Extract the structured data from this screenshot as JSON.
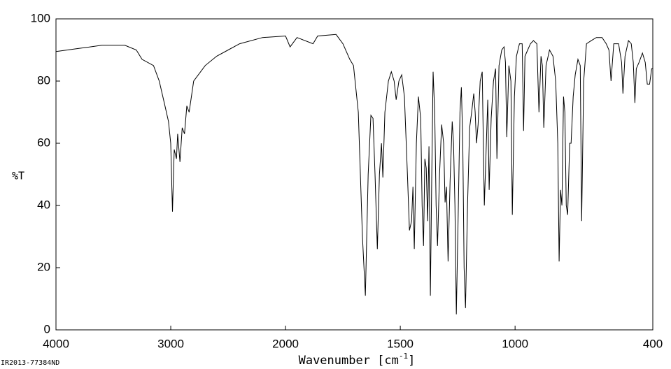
{
  "chart_data": {
    "type": "line",
    "ylabel": "%T",
    "xlabel": [
      "Wavenumber [cm",
      "-1",
      "]"
    ],
    "footer": "IR2013-77384ND",
    "xlim": [
      4000,
      400
    ],
    "xticks": [
      4000,
      3000,
      2000,
      1500,
      1000,
      400
    ],
    "x_scale": {
      "break": 2000,
      "factor": 2
    },
    "ylim": [
      0,
      100
    ],
    "yticks": [
      0,
      20,
      40,
      60,
      80,
      100
    ],
    "color": "#000000",
    "x": [
      4000,
      3800,
      3600,
      3400,
      3300,
      3250,
      3150,
      3100,
      3050,
      3020,
      3000,
      2985,
      2970,
      2950,
      2940,
      2920,
      2900,
      2880,
      2860,
      2840,
      2800,
      2700,
      2600,
      2500,
      2400,
      2200,
      2000,
      1980,
      1950,
      1880,
      1860,
      1780,
      1750,
      1720,
      1704,
      1683,
      1665,
      1652,
      1640,
      1628,
      1619,
      1610,
      1600,
      1591,
      1582,
      1576,
      1567,
      1552,
      1539,
      1527,
      1518,
      1506,
      1494,
      1482,
      1469,
      1460,
      1451,
      1445,
      1439,
      1430,
      1421,
      1411,
      1405,
      1399,
      1393,
      1387,
      1381,
      1375,
      1369,
      1363,
      1357,
      1350,
      1344,
      1338,
      1329,
      1320,
      1311,
      1305,
      1299,
      1292,
      1283,
      1274,
      1268,
      1262,
      1256,
      1247,
      1240,
      1234,
      1228,
      1222,
      1216,
      1207,
      1198,
      1189,
      1180,
      1174,
      1168,
      1161,
      1152,
      1143,
      1134,
      1125,
      1119,
      1113,
      1104,
      1094,
      1085,
      1079,
      1070,
      1058,
      1048,
      1042,
      1036,
      1027,
      1018,
      1012,
      1003,
      994,
      981,
      969,
      963,
      957,
      945,
      933,
      920,
      905,
      896,
      887,
      881,
      875,
      865,
      850,
      835,
      823,
      814,
      808,
      802,
      796,
      789,
      783,
      777,
      771,
      762,
      756,
      747,
      738,
      726,
      716,
      710,
      701,
      689,
      668,
      646,
      621,
      603,
      591,
      582,
      570,
      549,
      536,
      530,
      521,
      506,
      494,
      485,
      478,
      472,
      460,
      445,
      433,
      424,
      414,
      405,
      400
    ],
    "values": [
      89.5,
      90.5,
      91.5,
      91.5,
      90,
      87,
      85,
      80,
      72,
      67,
      60,
      38,
      58,
      55,
      63,
      54,
      65,
      63,
      72,
      70,
      80,
      85,
      88,
      90,
      92,
      94,
      94.5,
      91,
      94,
      92,
      94.5,
      95,
      92,
      87,
      85,
      70,
      30,
      11,
      50,
      69,
      68,
      50,
      26,
      50,
      60,
      49,
      70,
      80,
      83,
      80,
      74,
      80,
      82,
      75,
      50,
      32,
      35,
      46,
      26,
      60,
      75,
      68,
      40,
      27,
      55,
      52,
      35,
      59,
      11,
      50,
      83,
      70,
      40,
      27,
      50,
      66,
      60,
      41,
      46,
      22,
      48,
      67,
      60,
      40,
      5,
      40,
      70,
      78,
      60,
      20,
      7,
      40,
      65,
      70,
      76,
      70,
      60,
      66,
      80,
      83,
      40,
      60,
      74,
      45,
      68,
      80,
      84,
      55,
      85,
      90,
      91,
      86,
      62,
      85,
      80,
      37,
      75,
      88,
      92,
      92,
      64,
      88,
      90,
      92,
      93,
      92,
      70,
      88,
      85,
      65,
      85,
      90,
      88,
      80,
      60,
      22,
      45,
      40,
      75,
      70,
      40,
      37,
      60,
      60,
      75,
      82,
      87,
      85,
      35,
      80,
      92,
      93,
      94,
      94,
      92,
      90,
      80,
      92,
      92,
      86,
      76,
      88,
      93,
      92,
      86,
      73,
      84,
      86,
      89,
      86,
      79,
      79,
      84,
      84
    ]
  }
}
